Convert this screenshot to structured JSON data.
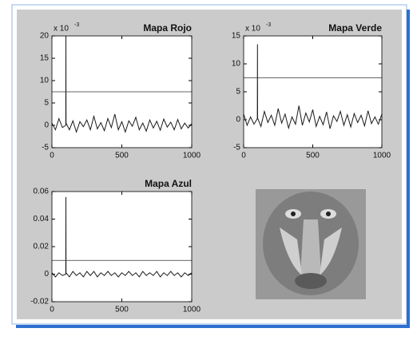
{
  "chart_data": [
    {
      "type": "line",
      "title": "Mapa Rojo",
      "y_multiplier": {
        "base": "x 10",
        "exponent": "-3"
      },
      "xlim": [
        0,
        1000
      ],
      "xticks": [
        0,
        500,
        1000
      ],
      "ylim": [
        -5,
        20
      ],
      "yticks": [
        -5,
        0,
        5,
        10,
        15,
        20
      ],
      "series": [
        {
          "color": "#1a1a1a",
          "x": [
            0,
            25,
            50,
            75,
            99,
            100,
            101,
            125,
            150,
            175,
            200,
            225,
            250,
            275,
            300,
            325,
            350,
            375,
            400,
            425,
            450,
            475,
            500,
            525,
            550,
            575,
            600,
            625,
            650,
            675,
            700,
            725,
            750,
            775,
            800,
            825,
            850,
            875,
            900,
            925,
            950,
            975,
            1000
          ],
          "values": [
            0.5,
            -1,
            1.5,
            -0.5,
            0,
            20,
            0.5,
            -1,
            1,
            -1.5,
            0.8,
            -0.3,
            1.2,
            -1,
            2,
            -0.8,
            0.6,
            -1.2,
            1.5,
            -0.5,
            2.5,
            -1,
            0.8,
            -1.5,
            1,
            -0.2,
            1.8,
            -1,
            0.5,
            -1.3,
            1.2,
            -0.6,
            0.9,
            -1.1,
            1.4,
            -0.4,
            0.7,
            -1,
            1.3,
            -0.8,
            0.5,
            -0.6,
            0.4
          ]
        },
        {
          "color": "#333333",
          "x": [
            0,
            1000
          ],
          "values": [
            7.5,
            7.5
          ]
        }
      ]
    },
    {
      "type": "line",
      "title": "Mapa Verde",
      "y_multiplier": {
        "base": "x 10",
        "exponent": "-3"
      },
      "xlim": [
        0,
        1000
      ],
      "xticks": [
        0,
        500,
        1000
      ],
      "ylim": [
        -5,
        15
      ],
      "yticks": [
        -5,
        0,
        5,
        10,
        15
      ],
      "series": [
        {
          "color": "#1a1a1a",
          "x": [
            0,
            25,
            50,
            75,
            99,
            100,
            101,
            125,
            150,
            175,
            200,
            225,
            250,
            275,
            300,
            325,
            350,
            375,
            400,
            425,
            450,
            475,
            500,
            525,
            550,
            575,
            600,
            625,
            650,
            675,
            700,
            725,
            750,
            775,
            800,
            825,
            850,
            875,
            900,
            925,
            950,
            975,
            1000
          ],
          "values": [
            1,
            -1,
            0.5,
            -0.8,
            0.2,
            13.5,
            0.3,
            -1.2,
            1.5,
            -0.5,
            0.8,
            -1,
            2,
            -0.6,
            1,
            -1.5,
            0.5,
            -0.8,
            2.5,
            -1,
            1.2,
            -0.4,
            1.8,
            -1.2,
            0.6,
            -0.9,
            1.4,
            -1.6,
            0.7,
            -0.3,
            1.5,
            -1,
            0.9,
            -1.3,
            1.1,
            -0.5,
            0.8,
            -1.1,
            1.6,
            -0.7,
            0.5,
            -0.8,
            1
          ]
        },
        {
          "color": "#333333",
          "x": [
            0,
            1000
          ],
          "values": [
            7.5,
            7.5
          ]
        }
      ]
    },
    {
      "type": "line",
      "title": "Mapa Azul",
      "xlim": [
        0,
        1000
      ],
      "xticks": [
        0,
        500,
        1000
      ],
      "ylim": [
        -0.02,
        0.06
      ],
      "yticks": [
        -0.02,
        0,
        0.02,
        0.04,
        0.06
      ],
      "series": [
        {
          "color": "#1a1a1a",
          "x": [
            0,
            25,
            50,
            75,
            99,
            100,
            101,
            125,
            150,
            175,
            200,
            225,
            250,
            275,
            300,
            325,
            350,
            375,
            400,
            425,
            450,
            475,
            500,
            525,
            550,
            575,
            600,
            625,
            650,
            675,
            700,
            725,
            750,
            775,
            800,
            825,
            850,
            875,
            900,
            925,
            950,
            975,
            1000
          ],
          "values": [
            0.001,
            -0.002,
            0.001,
            -0.001,
            0,
            0.056,
            0.001,
            -0.002,
            0.002,
            -0.001,
            0.001,
            -0.002,
            0.002,
            -0.001,
            0.002,
            -0.002,
            0.001,
            -0.001,
            0.002,
            -0.001,
            0.001,
            -0.002,
            0.001,
            -0.001,
            0.002,
            -0.001,
            0.001,
            -0.002,
            0.002,
            -0.001,
            0.001,
            -0.001,
            0.002,
            -0.002,
            0.001,
            -0.001,
            0.002,
            -0.001,
            0.001,
            -0.002,
            0.001,
            -0.001,
            0.001
          ]
        },
        {
          "color": "#333333",
          "x": [
            0,
            1000
          ],
          "values": [
            0.01,
            0.01
          ]
        }
      ]
    }
  ]
}
